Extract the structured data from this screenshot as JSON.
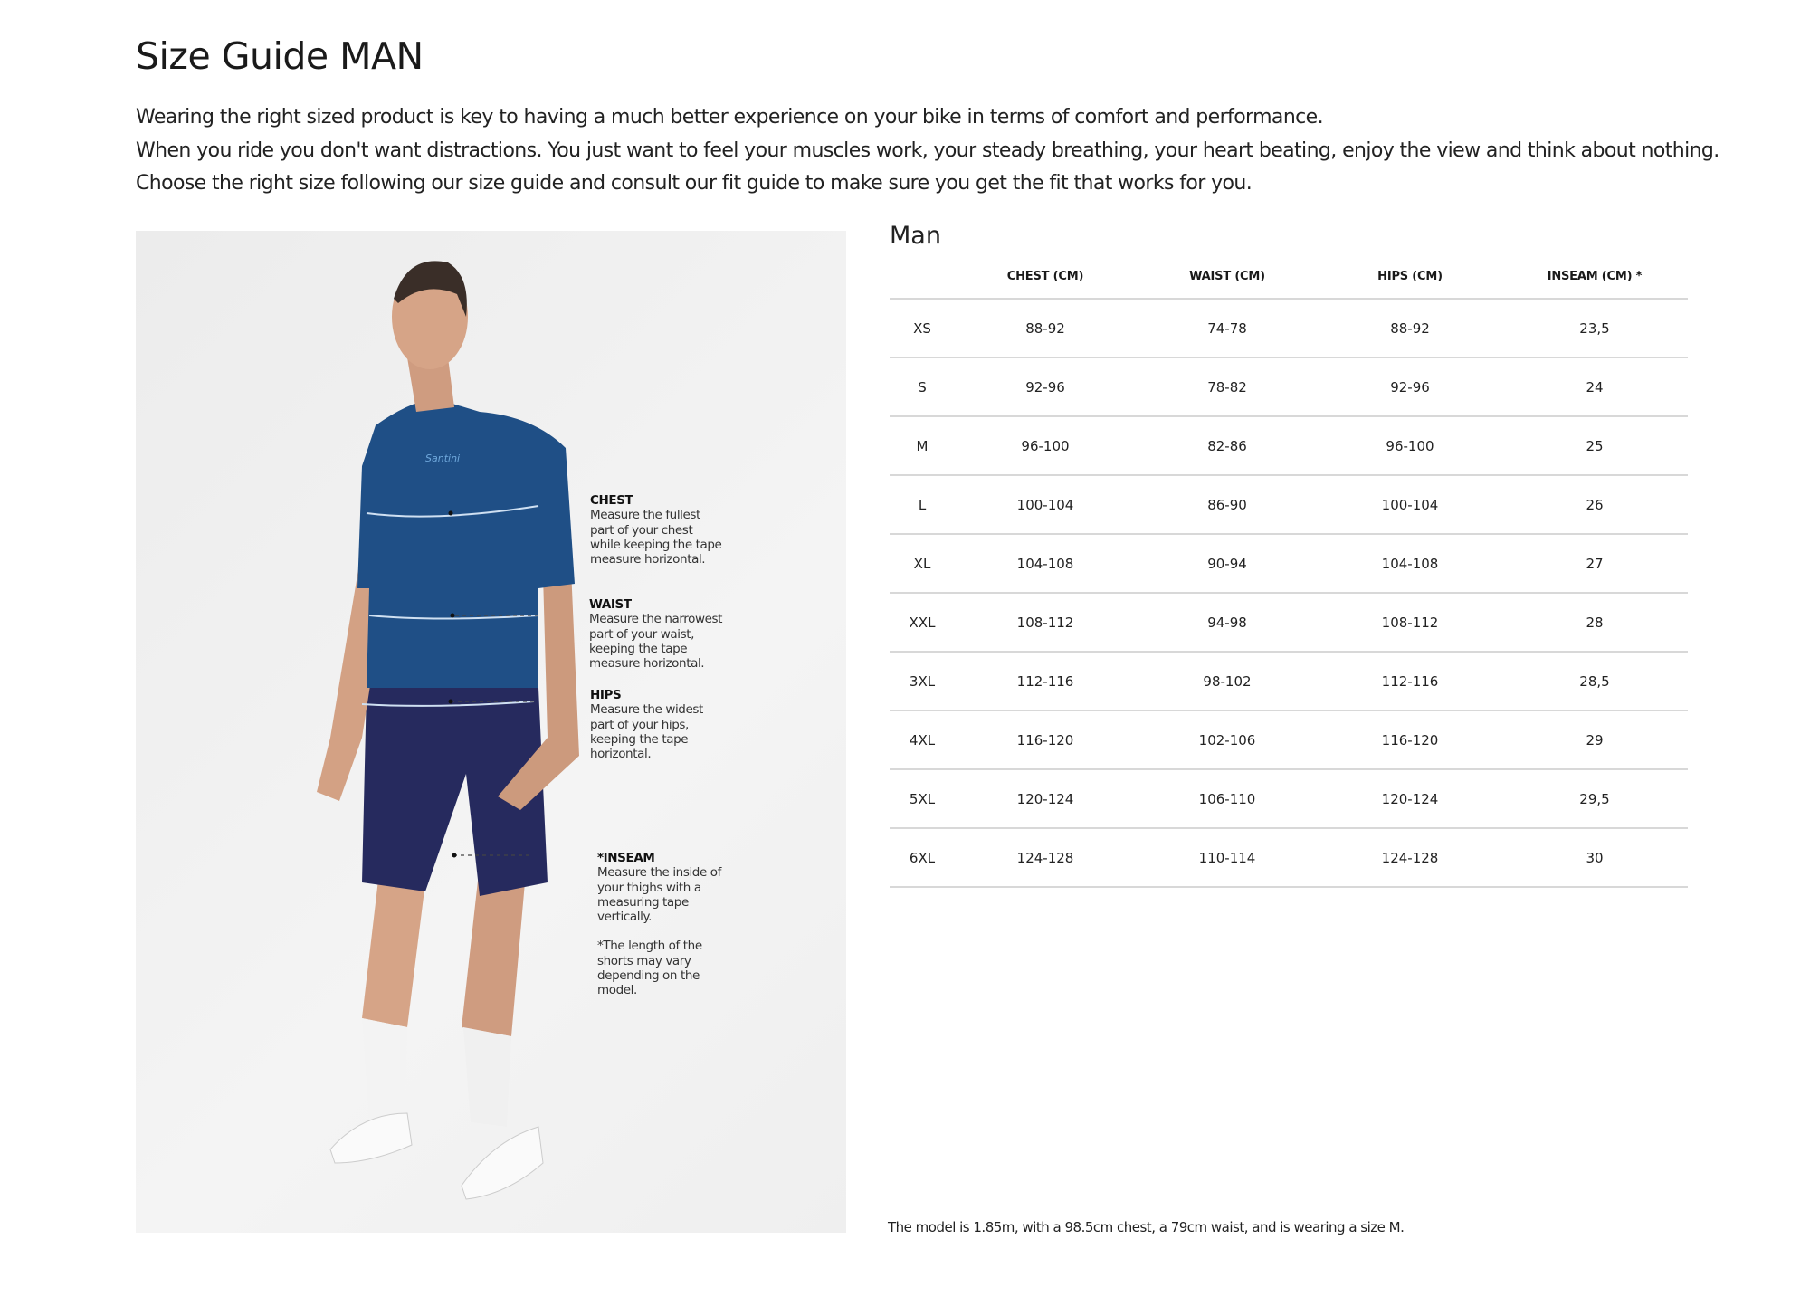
{
  "page": {
    "title": "Size Guide MAN",
    "intro": [
      "Wearing the right sized product is key to having a much better experience on your bike in terms of comfort and performance.",
      "When you ride you don't want distractions. You just want to feel your muscles work, your steady breathing, your heart beating, enjoy the view and think about nothing.",
      "Choose the right size following our size guide and consult our fit guide to make sure you get the fit that works for you."
    ]
  },
  "figure": {
    "brand_on_jersey": "Santini",
    "colors": {
      "jersey": "#1f4f86",
      "shorts": "#262a5e"
    },
    "notes": {
      "chest": {
        "title": "CHEST",
        "text": "Measure the fullest part of your chest while keeping the tape measure horizontal."
      },
      "waist": {
        "title": "WAIST",
        "text": "Measure the narrowest part of your waist, keeping the tape measure horizontal."
      },
      "hips": {
        "title": "HIPS",
        "text": "Measure the widest part of your hips, keeping the tape horizontal."
      },
      "inseam": {
        "title": "*INSEAM",
        "text": "Measure the inside of your thighs with a measuring tape vertically.",
        "footnote": "*The length of the shorts may vary depending on the model."
      }
    }
  },
  "table": {
    "title": "Man",
    "headers": [
      "",
      "CHEST (CM)",
      "WAIST (CM)",
      "HIPS (CM)",
      "INSEAM (CM) *"
    ],
    "rows": [
      [
        "XS",
        "88-92",
        "74-78",
        "88-92",
        "23,5"
      ],
      [
        "S",
        "92-96",
        "78-82",
        "92-96",
        "24"
      ],
      [
        "M",
        "96-100",
        "82-86",
        "96-100",
        "25"
      ],
      [
        "L",
        "100-104",
        "86-90",
        "100-104",
        "26"
      ],
      [
        "XL",
        "104-108",
        "90-94",
        "104-108",
        "27"
      ],
      [
        "XXL",
        "108-112",
        "94-98",
        "108-112",
        "28"
      ],
      [
        "3XL",
        "112-116",
        "98-102",
        "112-116",
        "28,5"
      ],
      [
        "4XL",
        "116-120",
        "102-106",
        "116-120",
        "29"
      ],
      [
        "5XL",
        "120-124",
        "106-110",
        "120-124",
        "29,5"
      ],
      [
        "6XL",
        "124-128",
        "110-114",
        "124-128",
        "30"
      ]
    ],
    "footnote": "The model is 1.85m, with a 98.5cm chest, a 79cm waist, and is wearing a size M."
  }
}
